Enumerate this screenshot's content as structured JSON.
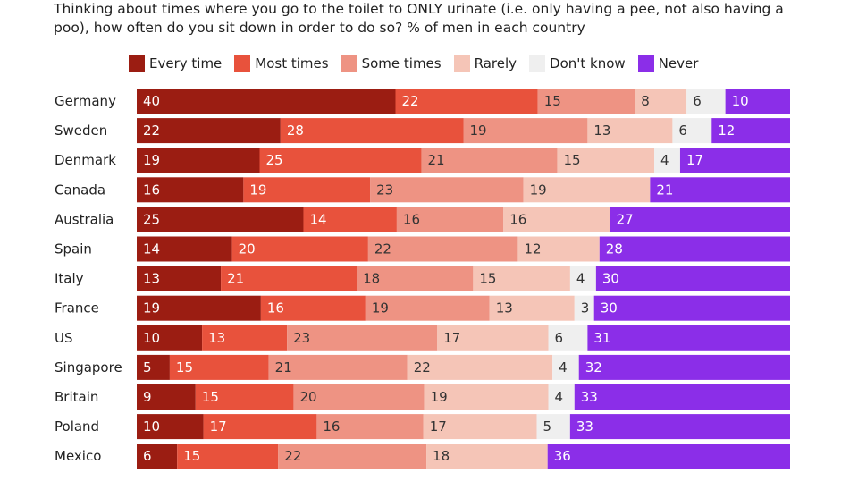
{
  "chart_data": {
    "type": "bar",
    "orientation": "horizontal",
    "stacked": true,
    "title": "Thinking about times where you go to the toilet to ONLY urinate (i.e. only having a pee, not also having a poo), how often do you sit down in order to do so? % of men in each country",
    "xlabel": "",
    "ylabel": "",
    "legend_position": "top",
    "categories": [
      "Germany",
      "Sweden",
      "Denmark",
      "Canada",
      "Australia",
      "Spain",
      "Italy",
      "France",
      "US",
      "Singapore",
      "Britain",
      "Poland",
      "Mexico"
    ],
    "series": [
      {
        "name": "Every time",
        "color": "#9b1d12",
        "label_color": "#ffffff",
        "values": [
          40,
          22,
          19,
          16,
          25,
          14,
          13,
          19,
          10,
          5,
          9,
          10,
          6
        ]
      },
      {
        "name": "Most times",
        "color": "#e8523c",
        "label_color": "#ffffff",
        "values": [
          22,
          28,
          25,
          19,
          14,
          20,
          21,
          16,
          13,
          15,
          15,
          17,
          15
        ]
      },
      {
        "name": "Some times",
        "color": "#ee9383",
        "label_color": "#333333",
        "values": [
          15,
          19,
          21,
          23,
          16,
          22,
          18,
          19,
          23,
          21,
          20,
          16,
          22
        ]
      },
      {
        "name": "Rarely",
        "color": "#f5c5b7",
        "label_color": "#333333",
        "values": [
          8,
          13,
          15,
          19,
          16,
          12,
          15,
          13,
          17,
          22,
          19,
          17,
          18
        ]
      },
      {
        "name": "Don't know",
        "color": "#efefef",
        "label_color": "#333333",
        "values": [
          6,
          6,
          4,
          null,
          null,
          null,
          4,
          3,
          6,
          4,
          4,
          5,
          null
        ]
      },
      {
        "name": "Never",
        "color": "#8b2ee8",
        "label_color": "#ffffff",
        "values": [
          10,
          12,
          17,
          21,
          27,
          28,
          30,
          30,
          31,
          32,
          33,
          33,
          36
        ]
      }
    ]
  }
}
